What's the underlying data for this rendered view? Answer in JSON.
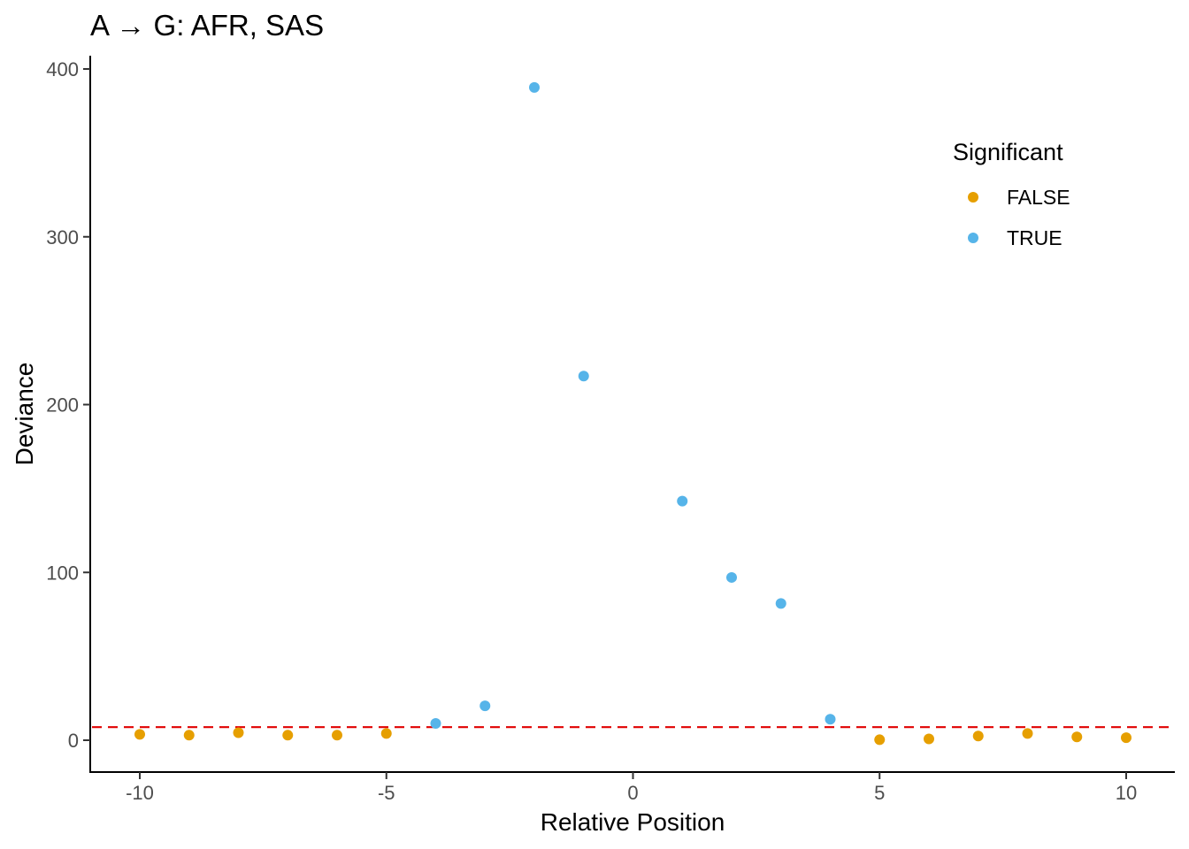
{
  "chart_data": {
    "type": "scatter",
    "title": "A → G: AFR, SAS",
    "xlabel": "Relative Position",
    "ylabel": "Deviance",
    "xlim": [
      -11,
      11
    ],
    "ylim": [
      -19,
      408
    ],
    "x_ticks": [
      -10,
      -5,
      0,
      5,
      10
    ],
    "x_tick_labels": [
      "-10",
      "-5",
      "0",
      "5",
      "10"
    ],
    "y_ticks": [
      0,
      100,
      200,
      300,
      400
    ],
    "y_tick_labels": [
      "0",
      "100",
      "200",
      "300",
      "400"
    ],
    "grid": false,
    "threshold_line": {
      "y": 7.8,
      "color": "#e00000",
      "style": "dashed"
    },
    "legend": {
      "title": "Significant",
      "placement": "top-right",
      "entries": [
        {
          "label": "FALSE",
          "color": "#E69F00"
        },
        {
          "label": "TRUE",
          "color": "#56B4E9"
        }
      ]
    },
    "series": [
      {
        "name": "FALSE",
        "color": "#E69F00",
        "x": [
          -10,
          -9,
          -8,
          -7,
          -6,
          -5,
          5,
          6,
          7,
          8,
          9,
          10
        ],
        "y": [
          3.5,
          3,
          4.5,
          3,
          3,
          4,
          0.3,
          0.8,
          2.5,
          4,
          2,
          1.5
        ]
      },
      {
        "name": "TRUE",
        "color": "#56B4E9",
        "x": [
          -4,
          -3,
          -2,
          -1,
          1,
          2,
          3,
          4
        ],
        "y": [
          10,
          20.5,
          389,
          217,
          142.5,
          97,
          81.5,
          12.5
        ]
      }
    ]
  }
}
